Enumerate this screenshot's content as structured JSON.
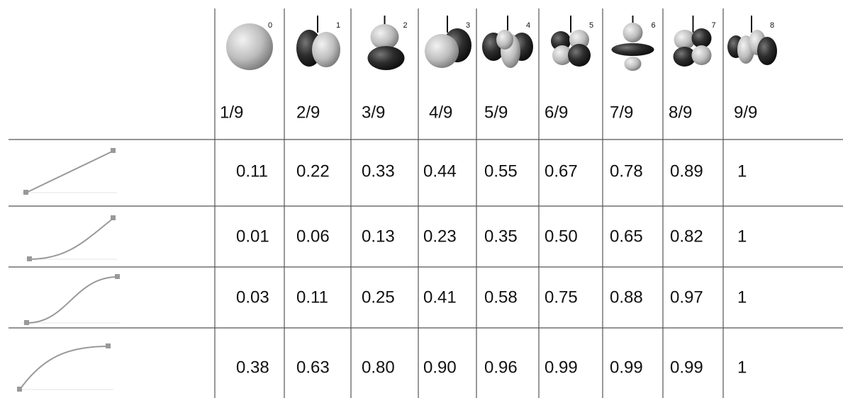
{
  "header": {
    "orbital_labels": [
      "0",
      "1",
      "2",
      "3",
      "4",
      "5",
      "6",
      "7",
      "8"
    ],
    "fractions": [
      "1/9",
      "2/9",
      "3/9",
      "4/9",
      "5/9",
      "6/9",
      "7/9",
      "8/9",
      "9/9"
    ]
  },
  "table": {
    "rows": [
      [
        "0.11",
        "0.22",
        "0.33",
        "0.44",
        "0.55",
        "0.67",
        "0.78",
        "0.89",
        "1"
      ],
      [
        "0.01",
        "0.06",
        "0.13",
        "0.23",
        "0.35",
        "0.50",
        "0.65",
        "0.82",
        "1"
      ],
      [
        "0.03",
        "0.11",
        "0.25",
        "0.41",
        "0.58",
        "0.75",
        "0.88",
        "0.97",
        "1"
      ],
      [
        "0.38",
        "0.63",
        "0.80",
        "0.90",
        "0.96",
        "0.99",
        "0.99",
        "0.99",
        "1"
      ]
    ]
  }
}
